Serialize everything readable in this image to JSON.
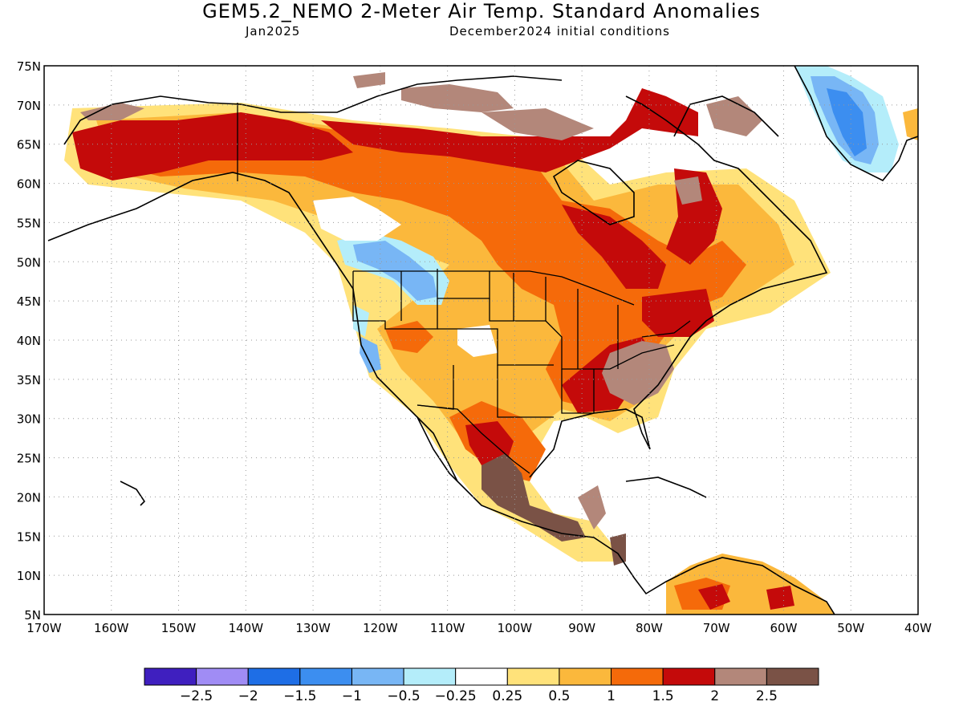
{
  "header": {
    "title": "GEM5.2_NEMO 2-Meter Air Temp. Standard Anomalies",
    "valid_month": "Jan2025",
    "init_label": "December2024 initial conditions"
  },
  "axes": {
    "lat_labels": [
      "75N",
      "70N",
      "65N",
      "60N",
      "55N",
      "50N",
      "45N",
      "40N",
      "35N",
      "30N",
      "25N",
      "20N",
      "15N",
      "10N",
      "5N"
    ],
    "lon_labels": [
      "170W",
      "160W",
      "150W",
      "140W",
      "130W",
      "120W",
      "110W",
      "100W",
      "90W",
      "80W",
      "70W",
      "60W",
      "50W",
      "40W"
    ],
    "lat_range": [
      5,
      75
    ],
    "lon_range": [
      -170,
      -40
    ],
    "grid": "dotted"
  },
  "colorbar": {
    "colors": [
      "#3f1fbf",
      "#a08cf5",
      "#1e6ee6",
      "#3c8ef0",
      "#78b6f5",
      "#b4edfa",
      "#ffffff",
      "#ffe27a",
      "#fbb83c",
      "#f56a0a",
      "#c40a0a",
      "#b3877a",
      "#7a5246"
    ],
    "tick_labels": [
      "-2.5",
      "-2",
      "-1.5",
      "-1",
      "-0.5",
      "-0.25",
      "0.25",
      "0.5",
      "1",
      "1.5",
      "2",
      "2.5"
    ]
  }
}
